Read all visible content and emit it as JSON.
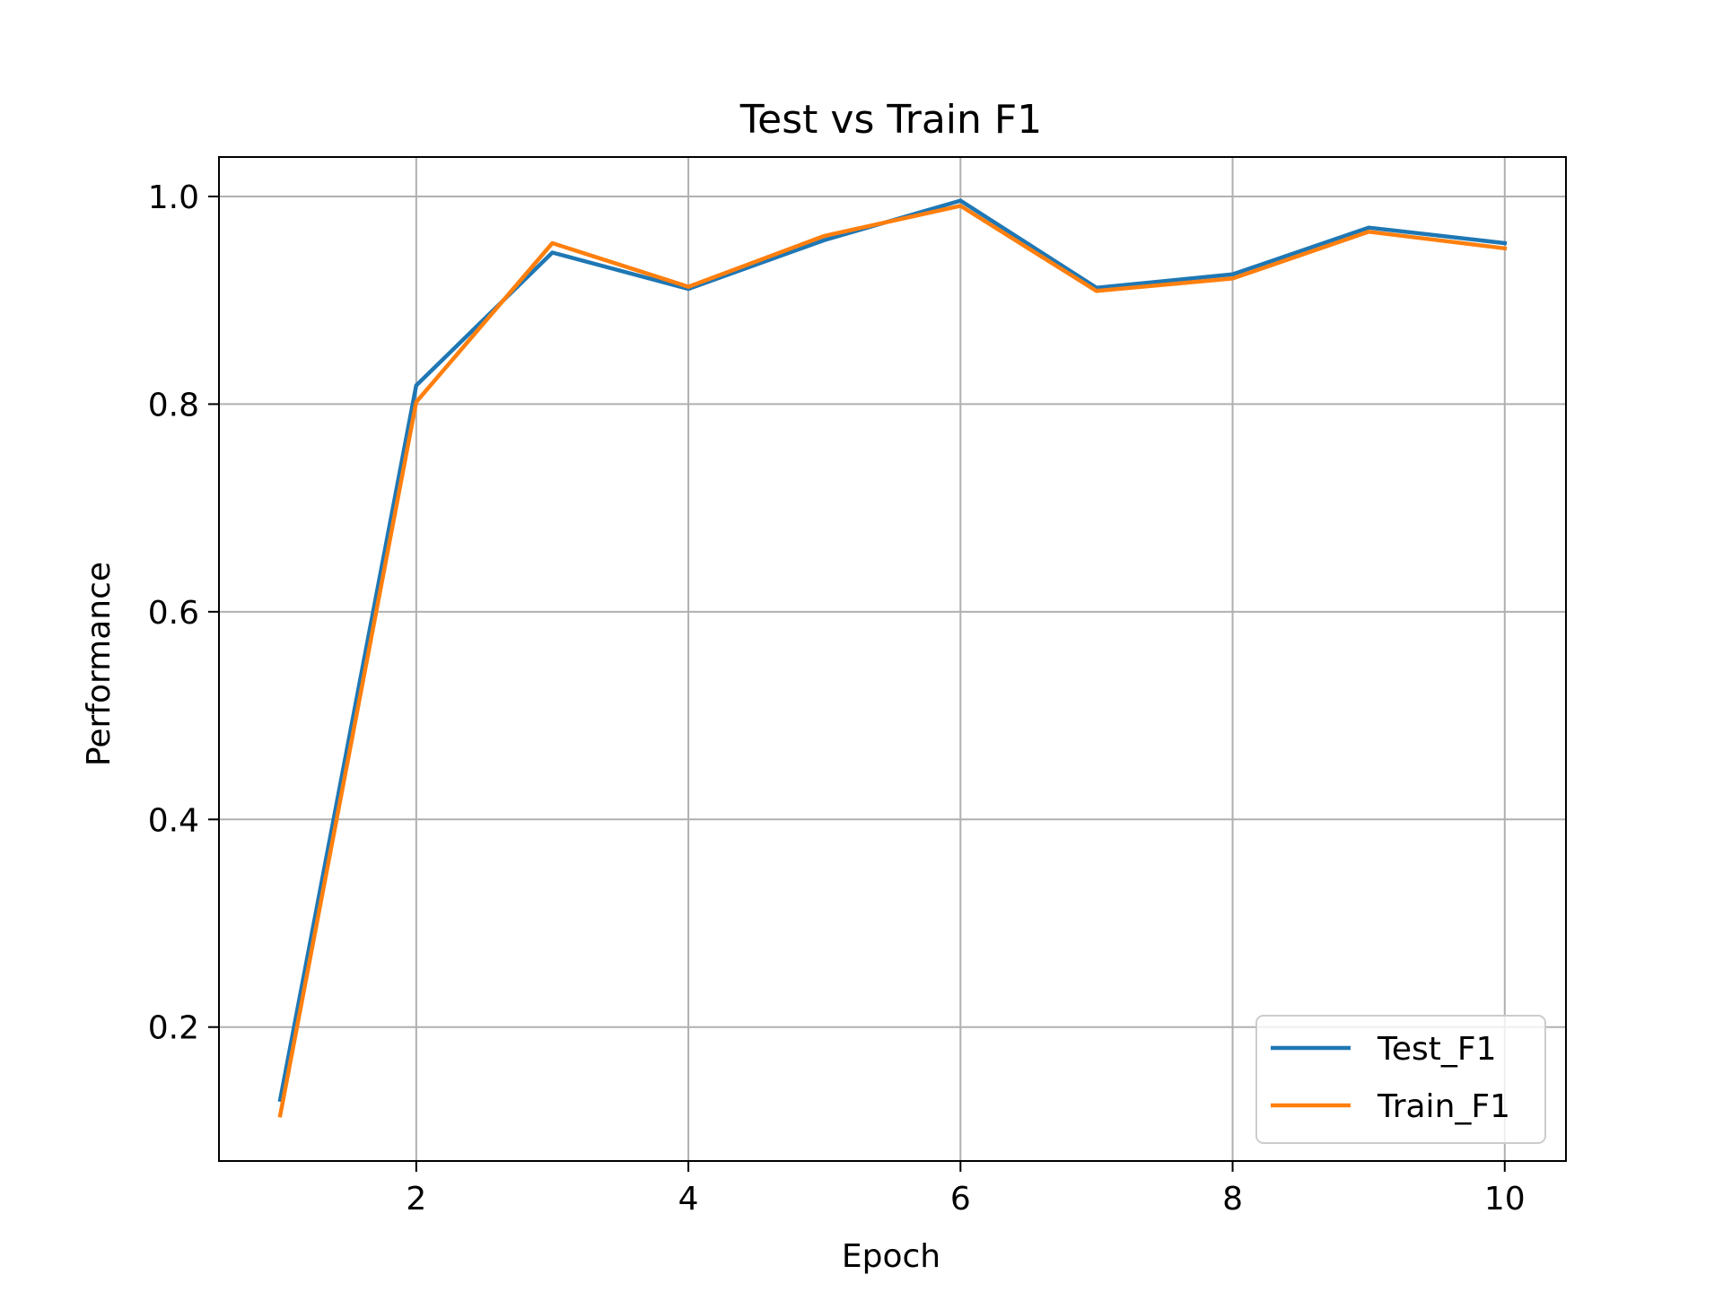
{
  "chart_data": {
    "type": "line",
    "title": "Test vs Train F1",
    "xlabel": "Epoch",
    "ylabel": "Performance",
    "x": [
      1,
      2,
      3,
      4,
      5,
      6,
      7,
      8,
      9,
      10
    ],
    "xlim": [
      0.55,
      10.45
    ],
    "ylim": [
      0.071,
      1.038
    ],
    "xticks": [
      2,
      4,
      6,
      8,
      10
    ],
    "yticks": [
      0.2,
      0.4,
      0.6,
      0.8,
      1.0
    ],
    "xtick_labels": [
      "2",
      "4",
      "6",
      "8",
      "10"
    ],
    "ytick_labels": [
      "0.2",
      "0.4",
      "0.6",
      "0.8",
      "1.0"
    ],
    "grid": true,
    "legend": "lower-right",
    "series": [
      {
        "name": "Test_F1",
        "color": "#1f77b4",
        "values": [
          0.13,
          0.818,
          0.946,
          0.911,
          0.958,
          0.996,
          0.912,
          0.925,
          0.97,
          0.955
        ]
      },
      {
        "name": "Train_F1",
        "color": "#ff7f0e",
        "values": [
          0.115,
          0.802,
          0.955,
          0.913,
          0.962,
          0.991,
          0.909,
          0.921,
          0.966,
          0.95
        ]
      }
    ]
  }
}
